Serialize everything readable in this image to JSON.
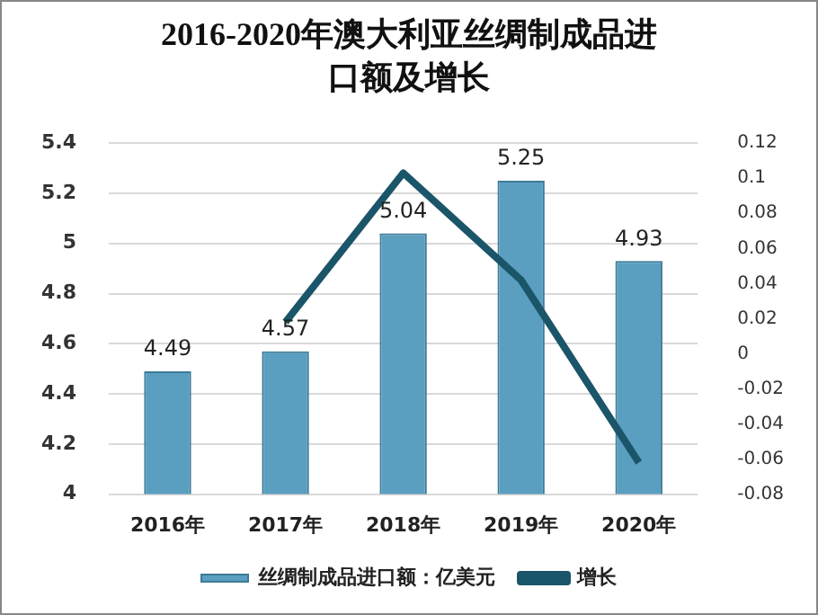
{
  "chart_data": {
    "type": "bar",
    "title": "2016-2020年澳大利亚丝绸制成品进口额及增长",
    "categories": [
      "2016年",
      "2017年",
      "2018年",
      "2019年",
      "2020年"
    ],
    "series": [
      {
        "name": "丝绸制成品进口额：亿美元",
        "color": "#5a9ec0",
        "values": [
          4.49,
          4.57,
          5.04,
          5.25,
          4.93
        ],
        "value_labels": [
          "4.49",
          "4.57",
          "5.04",
          "5.25",
          "4.93"
        ]
      },
      {
        "name": "增长",
        "type": "line",
        "axis": "y2",
        "color": "#1b5569",
        "values": [
          null,
          0.018,
          0.103,
          0.042,
          -0.062
        ]
      }
    ],
    "ylim": [
      4,
      5.4
    ],
    "yticks": [
      4,
      4.2,
      4.4,
      4.6,
      4.8,
      5,
      5.2,
      5.4
    ],
    "y2lim": [
      -0.08,
      0.12
    ],
    "y2ticks": [
      -0.08,
      -0.06,
      -0.04,
      -0.02,
      0,
      0.02,
      0.04,
      0.06,
      0.08,
      0.1,
      0.12
    ],
    "grid": "y",
    "legend": "bottom",
    "marker": "none"
  }
}
